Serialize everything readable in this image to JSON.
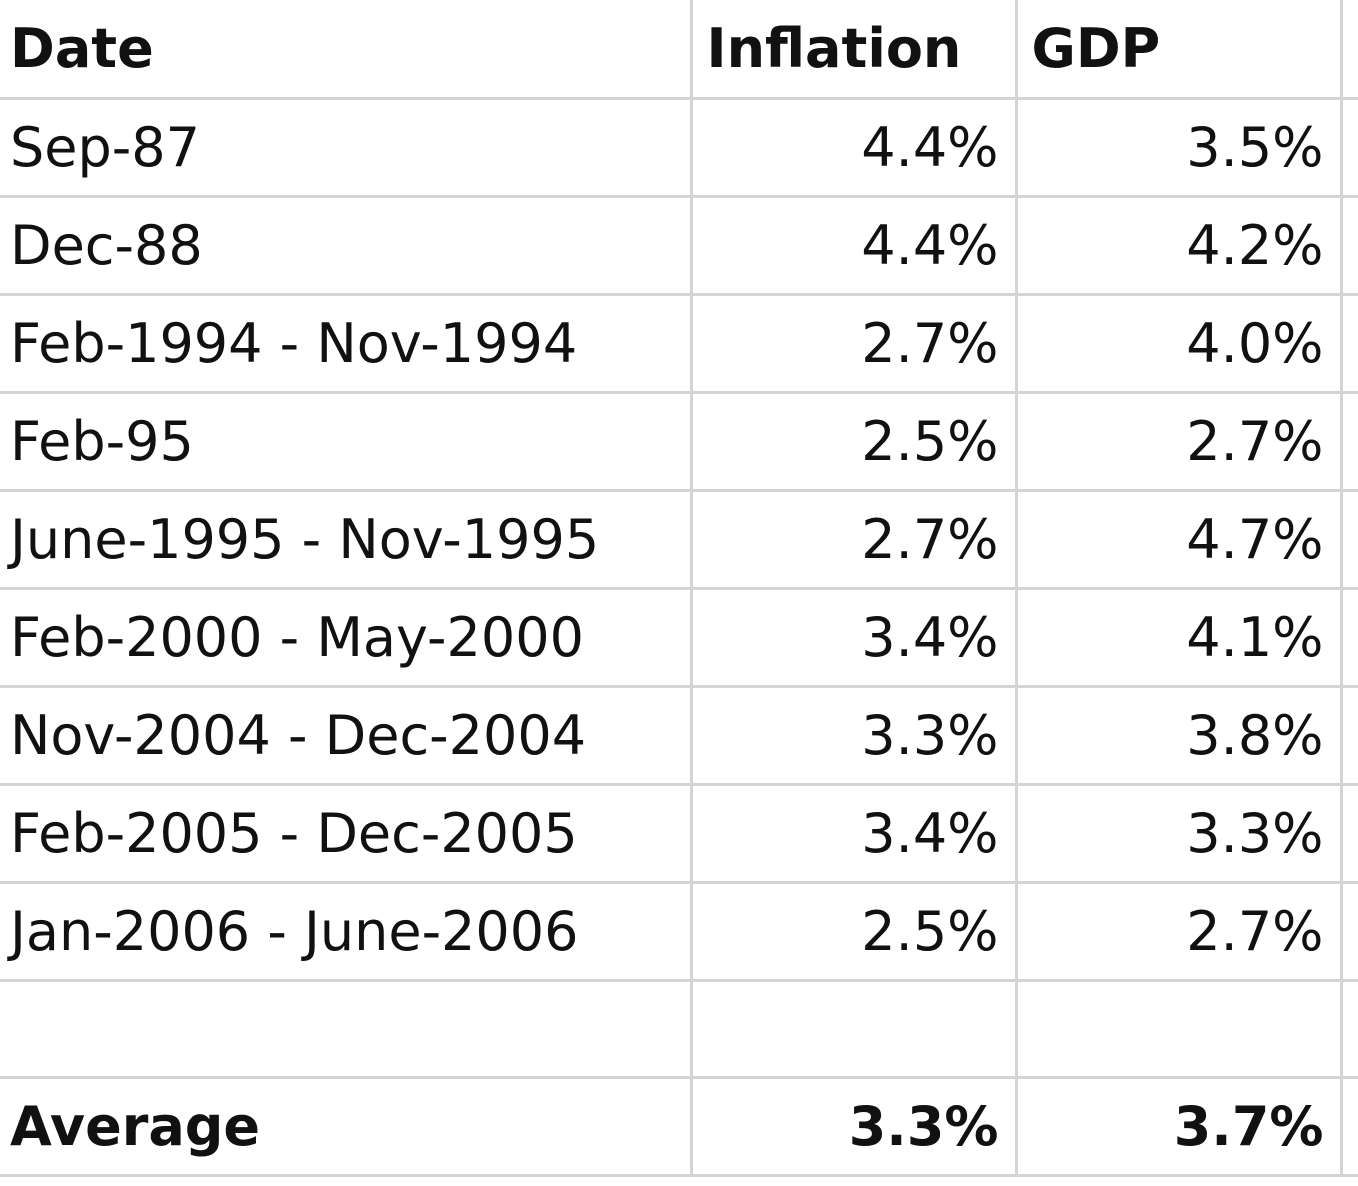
{
  "headers": {
    "date": "Date",
    "inflation": "Inflation",
    "gdp": "GDP"
  },
  "rows": [
    {
      "date": "Sep-87",
      "inflation": "4.4%",
      "gdp": "3.5%"
    },
    {
      "date": "Dec-88",
      "inflation": "4.4%",
      "gdp": "4.2%"
    },
    {
      "date": "Feb-1994 - Nov-1994",
      "inflation": "2.7%",
      "gdp": "4.0%"
    },
    {
      "date": "Feb-95",
      "inflation": "2.5%",
      "gdp": "2.7%"
    },
    {
      "date": "June-1995 - Nov-1995",
      "inflation": "2.7%",
      "gdp": "4.7%"
    },
    {
      "date": "Feb-2000 - May-2000",
      "inflation": "3.4%",
      "gdp": "4.1%"
    },
    {
      "date": "Nov-2004 - Dec-2004",
      "inflation": "3.3%",
      "gdp": "3.8%"
    },
    {
      "date": "Feb-2005 - Dec-2005",
      "inflation": "3.4%",
      "gdp": "3.3%"
    },
    {
      "date": "Jan-2006 - June-2006",
      "inflation": "2.5%",
      "gdp": "2.7%"
    }
  ],
  "average": {
    "label": "Average",
    "inflation": "3.3%",
    "gdp": "3.7%"
  },
  "colors": {
    "gridline": "#d4d4d4",
    "text": "#111111",
    "background": "#ffffff"
  }
}
